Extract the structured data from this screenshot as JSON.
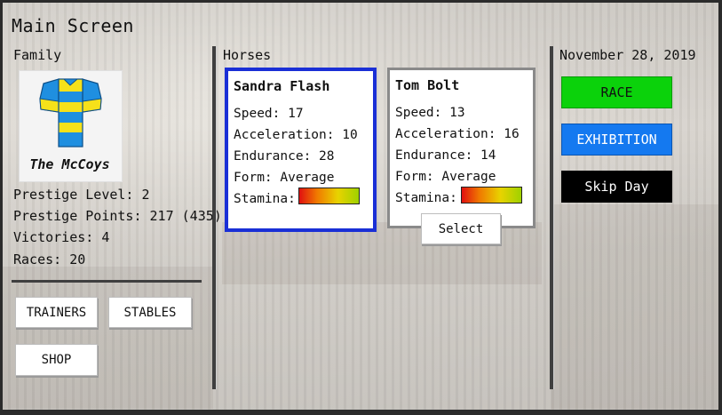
{
  "screen": {
    "title": "Main Screen"
  },
  "family": {
    "label": "Family",
    "name": "The McCoys",
    "jersey_colors": {
      "primary": "#1f8fe0",
      "secondary": "#f6e11a"
    },
    "stats": {
      "prestige_level": "Prestige Level: 2",
      "prestige_points": "Prestige Points: 217 (435)",
      "victories": "Victories: 4",
      "races": "Races: 20"
    },
    "buttons": {
      "trainers": "TRAINERS",
      "stables": "STABLES",
      "shop": "SHOP"
    }
  },
  "horses": {
    "label": "Horses",
    "stamina_label": "Stamina:",
    "list": [
      {
        "name": "Sandra Flash",
        "speed": "Speed: 17",
        "acceleration": "Acceleration: 10",
        "endurance": "Endurance: 28",
        "form": "Form: Average",
        "selected": true,
        "border_color": "#1a2fd6"
      },
      {
        "name": "Tom Bolt",
        "speed": "Speed: 13",
        "acceleration": "Acceleration: 16",
        "endurance": "Endurance: 14",
        "form": "Form: Average",
        "selected": false,
        "border_color": "#8a8a8a",
        "select_label": "Select"
      }
    ]
  },
  "sidebar": {
    "date": "November 28, 2019",
    "race_label": "RACE",
    "exhibition_label": "EXHIBITION",
    "skip_day_label": "Skip Day",
    "colors": {
      "race": "#0bd20b",
      "exhibition": "#1479f0",
      "skip_day": "#000000"
    }
  }
}
